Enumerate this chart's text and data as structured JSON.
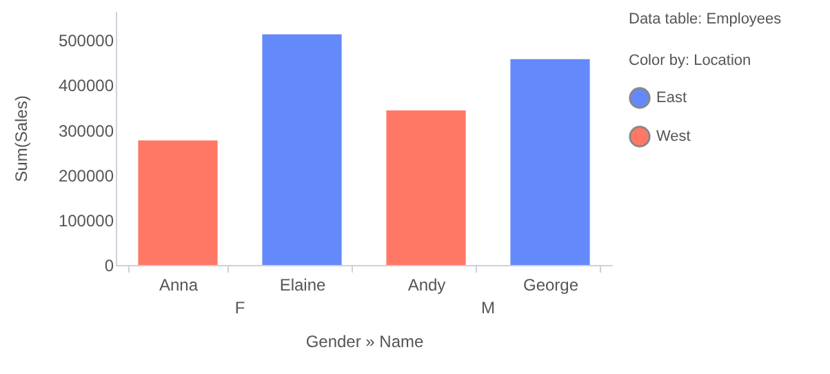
{
  "chart_data": {
    "type": "bar",
    "xlabel": "Gender » Name",
    "ylabel": "Sum(Sales)",
    "categories": [
      "Anna",
      "Elaine",
      "Andy",
      "George"
    ],
    "series": [
      {
        "name": "East",
        "color": "#6389fb",
        "values": [
          null,
          513000,
          null,
          458000
        ]
      },
      {
        "name": "West",
        "color": "#ff7866",
        "values": [
          277000,
          null,
          344000,
          null
        ]
      }
    ],
    "ylim": [
      0,
      565000
    ],
    "yticks": [
      0,
      100000,
      200000,
      300000,
      400000,
      500000
    ],
    "grid": false,
    "legend": "top right",
    "legend_title": "Color by: Location",
    "annotations": [
      "F",
      "M",
      "Data table: Employees"
    ]
  }
}
